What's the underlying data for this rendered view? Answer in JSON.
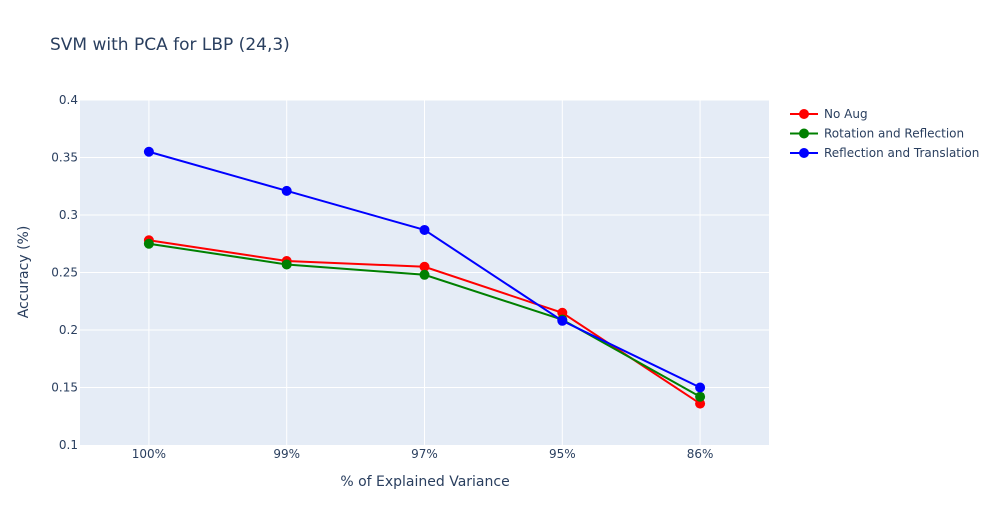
{
  "chart_data": {
    "type": "line",
    "title": "SVM with PCA for LBP (24,3)",
    "xlabel": "% of Explained Variance",
    "ylabel": "Accuracy (%)",
    "categories": [
      "100%",
      "99%",
      "97%",
      "95%",
      "86%"
    ],
    "ylim": [
      0.1,
      0.4
    ],
    "yticks": [
      0.1,
      0.15,
      0.2,
      0.25,
      0.3,
      0.35,
      0.4
    ],
    "ytick_labels": [
      "0.1",
      "0.15",
      "0.2",
      "0.25",
      "0.3",
      "0.35",
      "0.4"
    ],
    "grid": true,
    "legend_position": "top-right",
    "series": [
      {
        "name": "No Aug",
        "color": "#ff0000",
        "values": [
          0.278,
          0.26,
          0.255,
          0.215,
          0.136
        ]
      },
      {
        "name": "Rotation and Reflection",
        "color": "#008000",
        "values": [
          0.275,
          0.257,
          0.248,
          0.209,
          0.142
        ]
      },
      {
        "name": "Reflection and Translation",
        "color": "#0000ff",
        "values": [
          0.355,
          0.321,
          0.287,
          0.208,
          0.15
        ]
      }
    ],
    "plot_background": "#e5ecf6",
    "grid_color": "#ffffff",
    "text_color": "#2a3f5f"
  }
}
